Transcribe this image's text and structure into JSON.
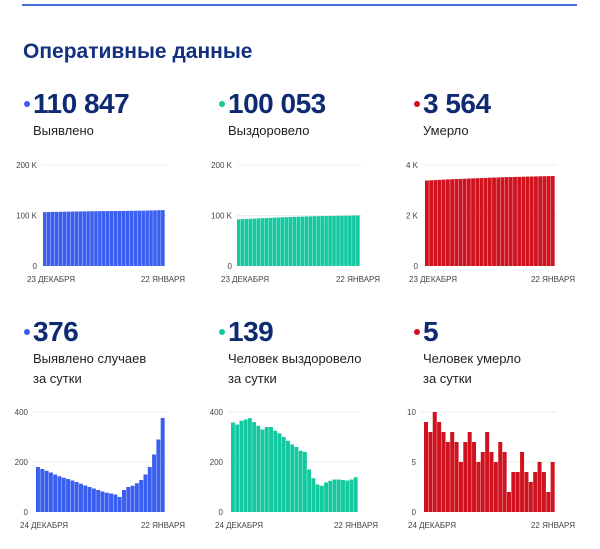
{
  "title": "Оперативные данные",
  "colors": {
    "blue": "#3a5ef0",
    "green": "#14c9a0",
    "red": "#d0121e",
    "title": "#13317f"
  },
  "stats": [
    {
      "value": "110 847",
      "label": "Выявлено",
      "color": "#3a5ef0"
    },
    {
      "value": "100 053",
      "label": "Выздоровело",
      "color": "#14c9a0"
    },
    {
      "value": "3 564",
      "label": "Умерло",
      "color": "#d0121e"
    },
    {
      "value": "376",
      "label": "Выявлено случаев",
      "label2": "за сутки",
      "color": "#3a5ef0"
    },
    {
      "value": "139",
      "label": "Человек выздоровело",
      "label2": "за сутки",
      "color": "#14c9a0"
    },
    {
      "value": "5",
      "label": "Человек умерло",
      "label2": "за сутки",
      "color": "#d0121e"
    }
  ],
  "chart_data": [
    {
      "type": "bar",
      "color": "#3a5ef0",
      "ylim": [
        0,
        200
      ],
      "yticks": [
        0,
        100,
        200
      ],
      "yticklabels": [
        "0",
        "100 K",
        "200 K"
      ],
      "xlabels": [
        "23 ДЕКАБРЯ",
        "22 ЯНВАРЯ"
      ],
      "grid": true,
      "values": [
        106.7,
        106.9,
        107.1,
        107.2,
        107.4,
        107.5,
        107.7,
        107.8,
        108.0,
        108.1,
        108.2,
        108.3,
        108.4,
        108.5,
        108.6,
        108.7,
        108.8,
        108.9,
        108.9,
        109.0,
        109.1,
        109.2,
        109.3,
        109.4,
        109.5,
        109.6,
        109.8,
        110.0,
        110.2,
        110.5,
        110.8
      ]
    },
    {
      "type": "bar",
      "color": "#14c9a0",
      "ylim": [
        0,
        200
      ],
      "yticks": [
        0,
        100,
        200
      ],
      "yticklabels": [
        "0",
        "100 K",
        "200 K"
      ],
      "xlabels": [
        "23 ДЕКАБРЯ",
        "22 ЯНВАРЯ"
      ],
      "grid": true,
      "values": [
        92.5,
        92.9,
        93.2,
        93.6,
        94.0,
        94.3,
        94.7,
        95.0,
        95.4,
        95.7,
        96.1,
        96.4,
        96.7,
        97.0,
        97.3,
        97.6,
        97.9,
        98.1,
        98.4,
        98.6,
        98.7,
        98.9,
        99.0,
        99.1,
        99.2,
        99.4,
        99.5,
        99.6,
        99.8,
        99.9,
        100.1
      ]
    },
    {
      "type": "bar",
      "color": "#d0121e",
      "ylim": [
        0,
        4000
      ],
      "yticks": [
        0,
        2000,
        4000
      ],
      "yticklabels": [
        "0",
        "2 K",
        "4 K"
      ],
      "xlabels": [
        "23 ДЕКАБРЯ",
        "22 ЯНВАРЯ"
      ],
      "grid": true,
      "values": [
        3385,
        3394,
        3402,
        3412,
        3421,
        3429,
        3436,
        3444,
        3451,
        3456,
        3463,
        3471,
        3478,
        3483,
        3489,
        3497,
        3503,
        3508,
        3515,
        3521,
        3523,
        3527,
        3531,
        3537,
        3541,
        3544,
        3548,
        3553,
        3557,
        3559,
        3564
      ]
    },
    {
      "type": "bar",
      "color": "#3a5ef0",
      "ylim": [
        0,
        400
      ],
      "yticks": [
        0,
        200,
        400
      ],
      "yticklabels": [
        "0",
        "200",
        "400"
      ],
      "xlabels": [
        "24 ДЕКАБРЯ",
        "22 ЯНВАРЯ"
      ],
      "grid": true,
      "values": [
        180,
        172,
        165,
        158,
        150,
        143,
        137,
        132,
        126,
        120,
        113,
        106,
        100,
        94,
        88,
        82,
        77,
        74,
        70,
        60,
        88,
        100,
        105,
        115,
        128,
        150,
        180,
        230,
        290,
        376
      ]
    },
    {
      "type": "bar",
      "color": "#14c9a0",
      "ylim": [
        0,
        400
      ],
      "yticks": [
        0,
        200,
        400
      ],
      "yticklabels": [
        "0",
        "200",
        "400"
      ],
      "xlabels": [
        "24 ДЕКАБРЯ",
        "22 ЯНВАРЯ"
      ],
      "grid": true,
      "values": [
        358,
        350,
        365,
        370,
        375,
        360,
        345,
        330,
        340,
        340,
        325,
        315,
        300,
        285,
        270,
        260,
        245,
        240,
        170,
        135,
        110,
        105,
        118,
        125,
        130,
        130,
        128,
        126,
        130,
        139
      ]
    },
    {
      "type": "bar",
      "color": "#d0121e",
      "ylim": [
        0,
        10
      ],
      "yticks": [
        0,
        5,
        10
      ],
      "yticklabels": [
        "0",
        "5",
        "10"
      ],
      "xlabels": [
        "24 ДЕКАБРЯ",
        "22 ЯНВАРЯ"
      ],
      "grid": true,
      "values": [
        9,
        8,
        10,
        9,
        8,
        7,
        8,
        7,
        5,
        7,
        8,
        7,
        5,
        6,
        8,
        6,
        5,
        7,
        6,
        2,
        4,
        4,
        6,
        4,
        3,
        4,
        5,
        4,
        2,
        5
      ]
    }
  ]
}
